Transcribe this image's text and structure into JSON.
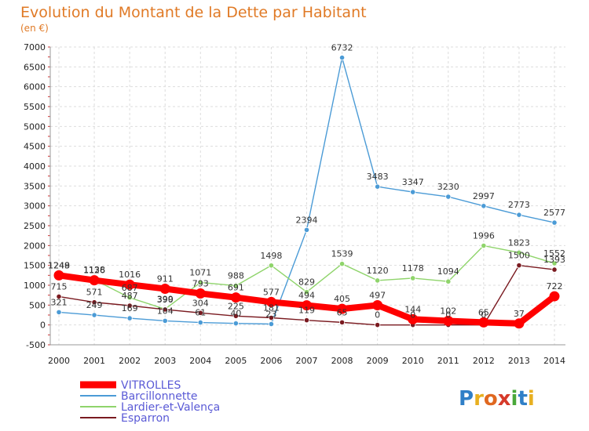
{
  "chart_data": {
    "type": "line",
    "title": "Evolution du Montant de la Dette par Habitant",
    "subtitle": "(en €)",
    "xlabel": "",
    "ylabel": "",
    "ylim": [
      -500,
      7000
    ],
    "yticks": [
      "7000",
      "6500",
      "6000",
      "5500",
      "5000",
      "4500",
      "4000",
      "3500",
      "3000",
      "2500",
      "2000",
      "1500",
      "1000",
      "500",
      "0",
      "-500"
    ],
    "categories": [
      "2000",
      "2001",
      "2002",
      "2003",
      "2004",
      "2005",
      "2006",
      "2007",
      "2008",
      "2009",
      "2010",
      "2011",
      "2012",
      "2013",
      "2014"
    ],
    "grid": true,
    "legend_position": "bottom-left",
    "series": [
      {
        "name": "VITROLLES",
        "color": "#ff0000",
        "values": [
          1249,
          1126,
          1016,
          911,
          793,
          691,
          577,
          494,
          405,
          497,
          144,
          102,
          65,
          37,
          722
        ],
        "labels": [
          "1249",
          "1126",
          "1016",
          "911",
          "793",
          "691",
          "577",
          "494",
          "405",
          "497",
          "144",
          "102",
          "65",
          "37",
          "722"
        ]
      },
      {
        "name": "Barcillonnette",
        "color": "#4b9bd6",
        "values": [
          321,
          249,
          169,
          104,
          61,
          40,
          23,
          2394,
          6732,
          3483,
          3347,
          3230,
          2997,
          2773,
          2577
        ],
        "labels": [
          "321",
          "249",
          "169",
          "104",
          "61",
          "40",
          "23",
          "2394",
          "6732",
          "3483",
          "3347",
          "3230",
          "2997",
          "2773",
          "2577"
        ]
      },
      {
        "name": "Lardier-et-Valença",
        "color": "#8fd46b",
        "values": [
          1248,
          1138,
          687,
          399,
          1071,
          988,
          1498,
          829,
          1539,
          1120,
          1178,
          1094,
          1996,
          1823,
          1552
        ],
        "labels": [
          "1248",
          "1138",
          "687",
          "399",
          "1071",
          "988",
          "1498",
          "829",
          "1539",
          "1120",
          "1178",
          "1094",
          "1996",
          "1823",
          "1552"
        ]
      },
      {
        "name": "Esparron",
        "color": "#7a1a20",
        "values": [
          715,
          571,
          487,
          390,
          304,
          225,
          181,
          119,
          65,
          0,
          0,
          0,
          0,
          1500,
          1393
        ],
        "labels": [
          "715",
          "571",
          "487",
          "390",
          "304",
          "225",
          "181",
          "119",
          "65",
          "0",
          "0",
          "0",
          "0",
          "1500",
          "1393"
        ]
      }
    ]
  },
  "logo": {
    "text": "Proxiti"
  }
}
